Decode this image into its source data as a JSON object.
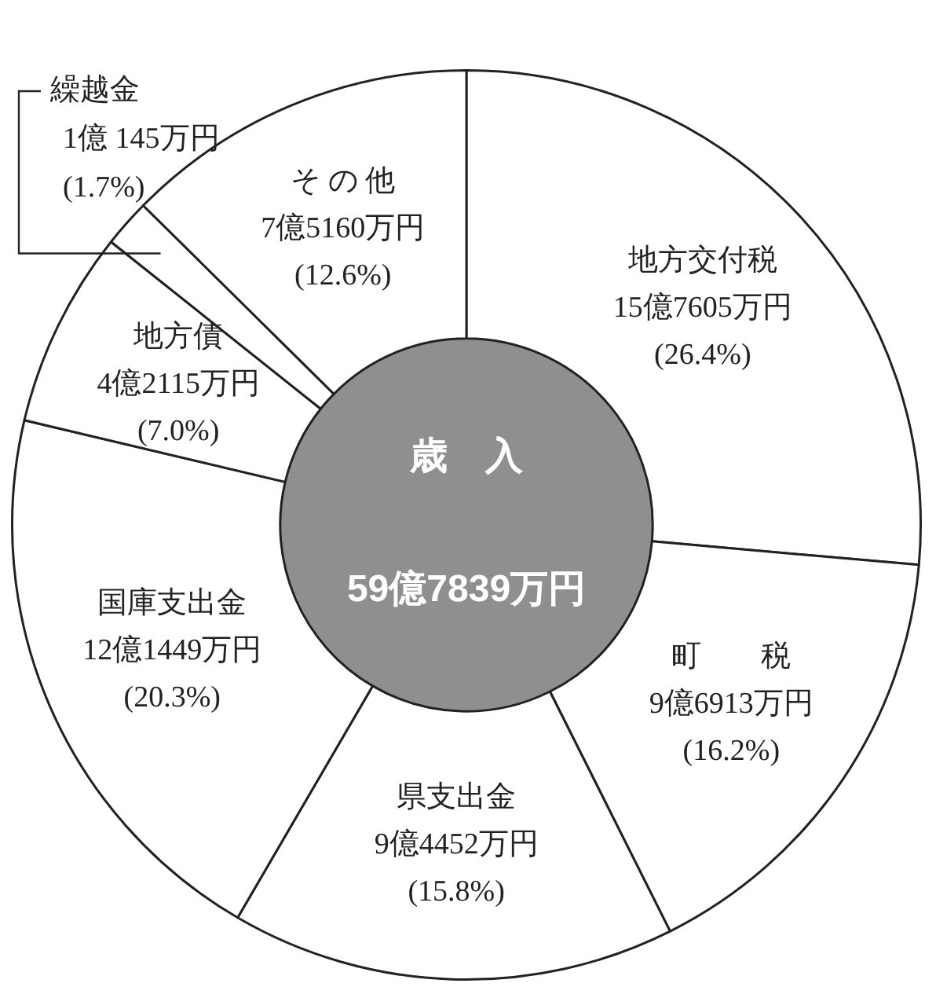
{
  "chart_data": {
    "type": "donut",
    "title": "歳　入",
    "subtitle": "59億7839万円",
    "categories": [
      "地方交付税",
      "町　　税",
      "県支出金",
      "国庫支出金",
      "地方債",
      "繰越金",
      "そ の 他"
    ],
    "values": [
      26.4,
      16.2,
      15.8,
      20.3,
      7.0,
      1.7,
      12.6
    ],
    "value_labels": [
      "(26.4%)",
      "(16.2%)",
      "(15.8%)",
      "(20.3%)",
      "(7.0%)",
      "(1.7%)",
      "(12.6%)"
    ],
    "annotations": [
      "15億7605万円",
      "9億6913万円",
      "9億4452万円",
      "12億1449万円",
      "4億2115万円",
      "1億 145万円",
      "7億5160万円"
    ],
    "colors": [
      "#ffffff",
      "#ffffff",
      "#ffffff",
      "#ffffff",
      "#ffffff",
      "#ffffff",
      "#ffffff"
    ],
    "legend": false
  }
}
